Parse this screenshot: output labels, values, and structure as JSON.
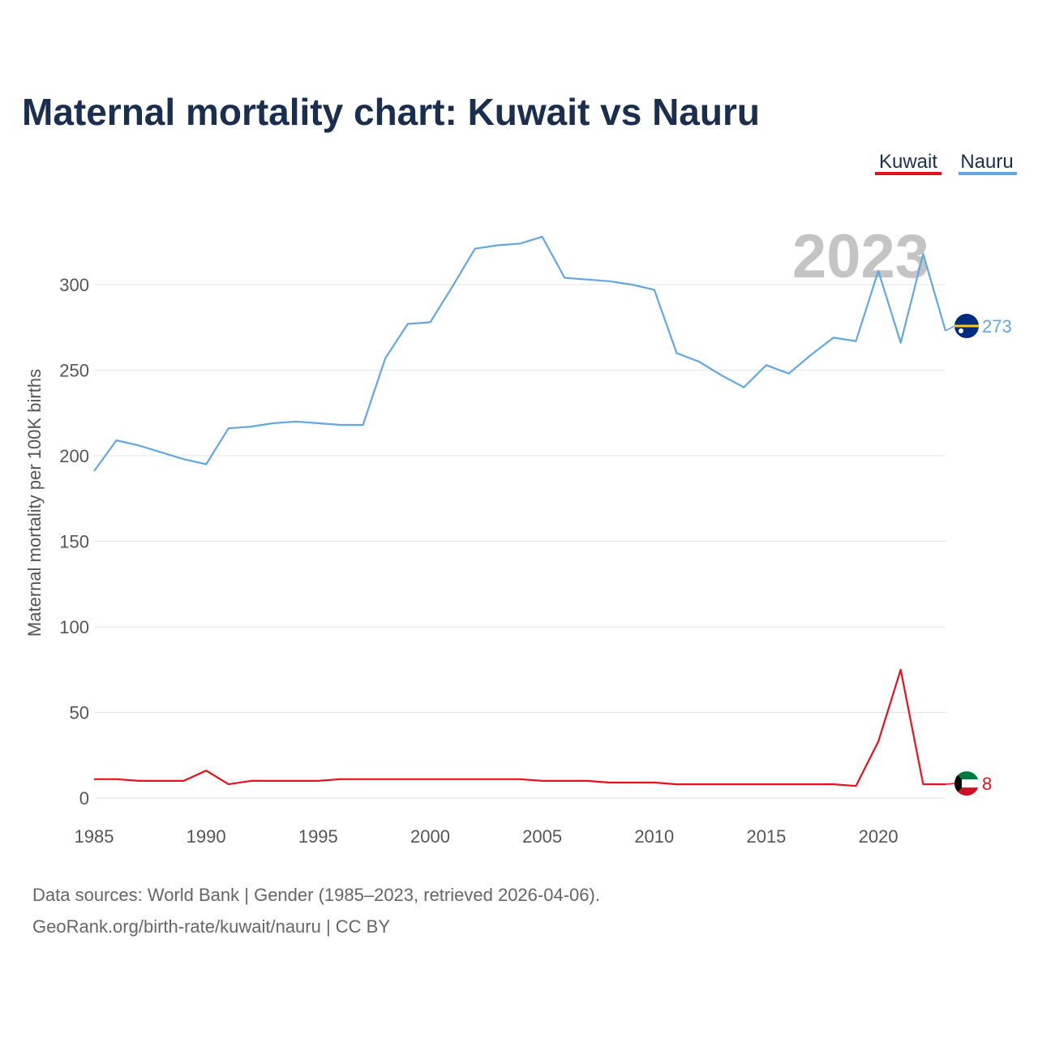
{
  "title": "Maternal mortality chart: Kuwait vs Nauru",
  "legend": {
    "kuwait_label": "Kuwait",
    "nauru_label": "Nauru"
  },
  "colors": {
    "kuwait": "#e8101a",
    "nauru": "#62a7e2",
    "title": "#1a2e50"
  },
  "current_year": "2023",
  "end_labels": {
    "kuwait": "8",
    "nauru": "273"
  },
  "flags": {
    "kuwait": "kuwait-flag-icon",
    "nauru": "nauru-flag-icon"
  },
  "footer": {
    "line1": "Data sources: World Bank | Gender (1985–2023, retrieved 2026-04-06).",
    "line2": "GeoRank.org/birth-rate/kuwait/nauru | CC BY"
  },
  "chart_data": {
    "type": "line",
    "title": "Maternal mortality chart: Kuwait vs Nauru",
    "xlabel": "",
    "ylabel": "Maternal mortality per 100K births",
    "xlim": [
      1985,
      2023
    ],
    "ylim": [
      0,
      340
    ],
    "x_ticks": [
      1985,
      1990,
      1995,
      2000,
      2005,
      2010,
      2015,
      2020
    ],
    "y_ticks": [
      0,
      50,
      100,
      150,
      200,
      250,
      300
    ],
    "grid": true,
    "legend_position": "top-right",
    "x": [
      1985,
      1986,
      1987,
      1988,
      1989,
      1990,
      1991,
      1992,
      1993,
      1994,
      1995,
      1996,
      1997,
      1998,
      1999,
      2000,
      2001,
      2002,
      2003,
      2004,
      2005,
      2006,
      2007,
      2008,
      2009,
      2010,
      2011,
      2012,
      2013,
      2014,
      2015,
      2016,
      2017,
      2018,
      2019,
      2020,
      2021,
      2022,
      2023
    ],
    "series": [
      {
        "name": "Kuwait",
        "color": "#e8101a",
        "values": [
          11,
          11,
          10,
          10,
          10,
          16,
          8,
          10,
          10,
          10,
          10,
          11,
          11,
          11,
          11,
          11,
          11,
          11,
          11,
          11,
          10,
          10,
          10,
          9,
          9,
          9,
          8,
          8,
          8,
          8,
          8,
          8,
          8,
          8,
          7,
          33,
          75,
          8,
          8
        ]
      },
      {
        "name": "Nauru",
        "color": "#62a7e2",
        "values": [
          191,
          209,
          206,
          202,
          198,
          195,
          216,
          217,
          219,
          220,
          219,
          218,
          218,
          257,
          277,
          278,
          299,
          321,
          323,
          324,
          328,
          304,
          303,
          302,
          300,
          297,
          260,
          255,
          247,
          240,
          253,
          248,
          259,
          269,
          267,
          308,
          266,
          318,
          273
        ]
      }
    ]
  }
}
